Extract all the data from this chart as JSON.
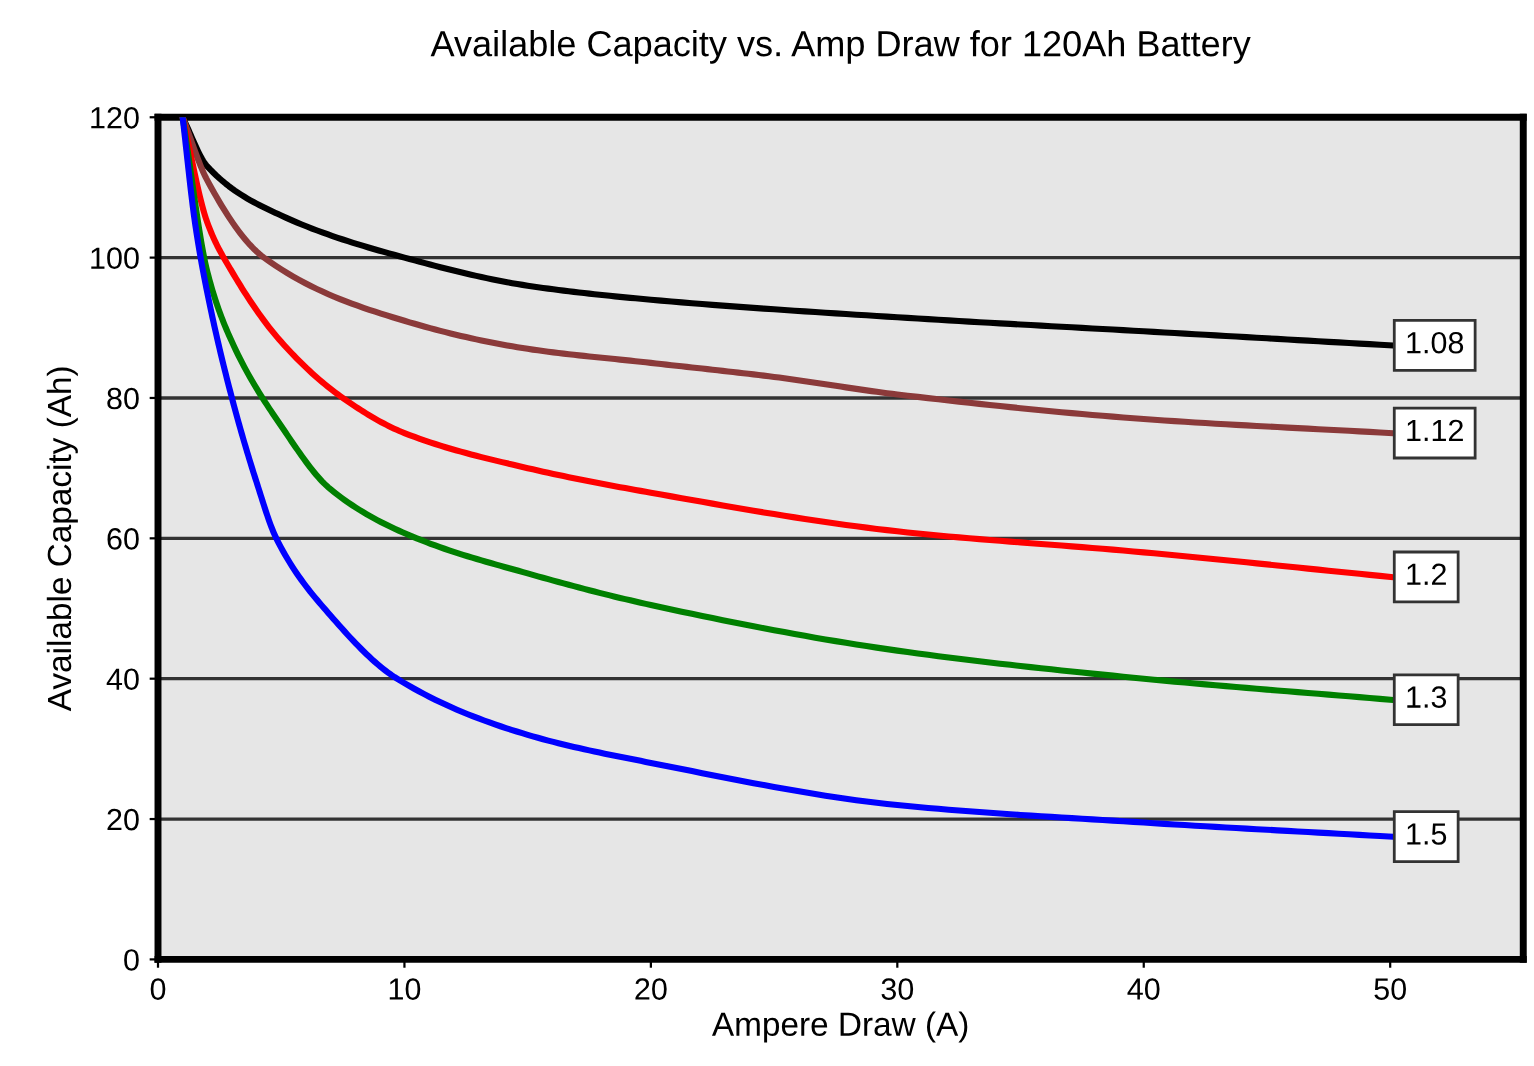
{
  "chart_data": {
    "type": "line",
    "title": "Available Capacity vs. Amp Draw for 120Ah Battery",
    "xlabel": "Ampere Draw (A)",
    "ylabel": "Available Capacity (Ah)",
    "xlim": [
      0,
      55.4
    ],
    "xticks": [
      0,
      10,
      20,
      30,
      40,
      50
    ],
    "ylim": [
      0,
      120
    ],
    "yticks": [
      0,
      20,
      40,
      60,
      80,
      100,
      120
    ],
    "grid": "y",
    "marker": "none",
    "line_style": "solid",
    "series": [
      {
        "name": "1.08",
        "color": "#000000",
        "x": [
          1,
          2,
          5,
          10,
          15,
          20,
          30,
          40,
          50
        ],
        "values": [
          120,
          113,
          106,
          100,
          96,
          94,
          91.5,
          89.5,
          87.5
        ]
      },
      {
        "name": "1.12",
        "color": "#8b3a3a",
        "x": [
          1,
          2,
          4.3,
          10,
          15,
          20,
          25,
          30,
          40,
          50
        ],
        "values": [
          120,
          111,
          100,
          91,
          87,
          85,
          83,
          80.5,
          77,
          75
        ]
      },
      {
        "name": "1.2",
        "color": "#ff0000",
        "x": [
          1,
          2,
          3,
          5,
          7.5,
          10,
          15,
          20,
          30,
          40,
          50
        ],
        "values": [
          120,
          105,
          98,
          88,
          80,
          75,
          70,
          66.5,
          61,
          58,
          54.5
        ]
      },
      {
        "name": "1.3",
        "color": "#008000",
        "x": [
          1,
          2,
          3,
          5,
          7,
          10.5,
          15,
          20,
          30,
          40,
          50
        ],
        "values": [
          120,
          98,
          88,
          76,
          67,
          60,
          55,
          50.5,
          44,
          40,
          37
        ]
      },
      {
        "name": "1.5",
        "color": "#0000ff",
        "x": [
          1,
          1.5,
          2,
          3,
          4,
          4.8,
          7,
          9.7,
          15,
          20,
          30,
          40,
          50
        ],
        "values": [
          120,
          105,
          95,
          80,
          68,
          60,
          49,
          40,
          32,
          28,
          22,
          19.5,
          17.5
        ]
      }
    ]
  }
}
